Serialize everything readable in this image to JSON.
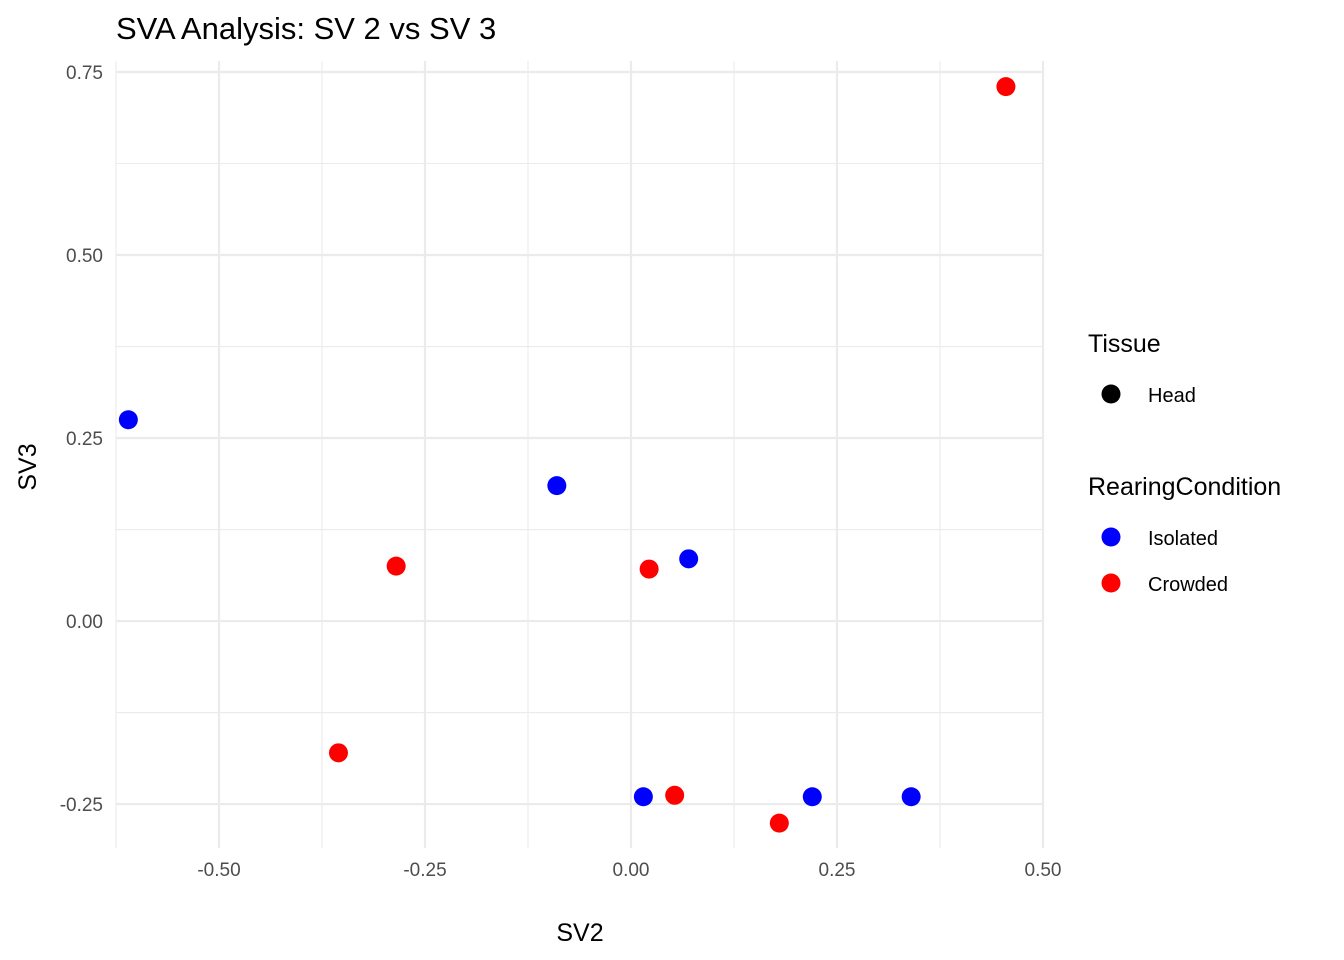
{
  "chart_data": {
    "type": "scatter",
    "title": "SVA Analysis: SV 2  vs SV 3",
    "xlabel": "SV2",
    "ylabel": "SV3",
    "xlim": [
      -0.625,
      0.5
    ],
    "ylim": [
      -0.31,
      0.765
    ],
    "x_ticks": [
      -0.5,
      -0.25,
      0.0,
      0.25,
      0.5
    ],
    "x_tick_labels": [
      "-0.50",
      "-0.25",
      "0.00",
      "0.25",
      "0.50"
    ],
    "y_ticks": [
      -0.25,
      0.0,
      0.25,
      0.5,
      0.75
    ],
    "y_tick_labels": [
      "-0.25",
      "0.00",
      "0.25",
      "0.50",
      "0.75"
    ],
    "grid": true,
    "legend_position": "right",
    "legends": [
      {
        "title": "Tissue",
        "entries": [
          {
            "label": "Head",
            "color": "#000000"
          }
        ]
      },
      {
        "title": "RearingCondition",
        "entries": [
          {
            "label": "Isolated",
            "color": "#0000ff"
          },
          {
            "label": "Crowded",
            "color": "#ff0000"
          }
        ]
      }
    ],
    "series": [
      {
        "name": "Isolated",
        "color": "#0000ff",
        "points": [
          {
            "x": -0.61,
            "y": 0.275
          },
          {
            "x": -0.09,
            "y": 0.185
          },
          {
            "x": 0.07,
            "y": 0.085
          },
          {
            "x": 0.015,
            "y": -0.24
          },
          {
            "x": 0.22,
            "y": -0.24
          },
          {
            "x": 0.34,
            "y": -0.24
          }
        ]
      },
      {
        "name": "Crowded",
        "color": "#ff0000",
        "points": [
          {
            "x": 0.455,
            "y": 0.73
          },
          {
            "x": -0.285,
            "y": 0.075
          },
          {
            "x": 0.022,
            "y": 0.071
          },
          {
            "x": -0.355,
            "y": -0.18
          },
          {
            "x": 0.053,
            "y": -0.238
          },
          {
            "x": 0.18,
            "y": -0.276
          }
        ]
      }
    ]
  }
}
